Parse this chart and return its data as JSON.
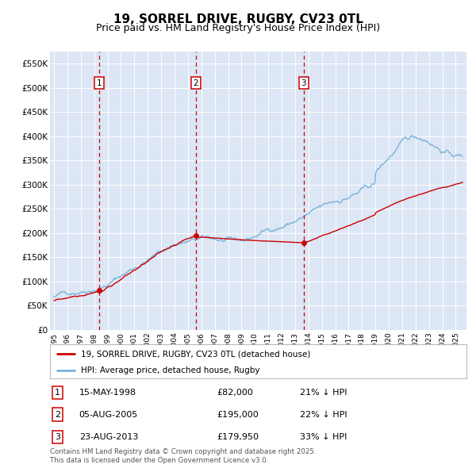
{
  "title": "19, SORREL DRIVE, RUGBY, CV23 0TL",
  "subtitle": "Price paid vs. HM Land Registry's House Price Index (HPI)",
  "ylim": [
    0,
    575000
  ],
  "yticks": [
    0,
    50000,
    100000,
    150000,
    200000,
    250000,
    300000,
    350000,
    400000,
    450000,
    500000,
    550000
  ],
  "ytick_labels": [
    "£0",
    "£50K",
    "£100K",
    "£150K",
    "£200K",
    "£250K",
    "£300K",
    "£350K",
    "£400K",
    "£450K",
    "£500K",
    "£550K"
  ],
  "xlim_start": 1994.7,
  "xlim_end": 2025.8,
  "plot_bg_color": "#dce6f5",
  "hpi_color": "#7ab3d9",
  "property_color": "#cc0000",
  "sales": [
    {
      "year": 1998.37,
      "price": 82000,
      "label": "1",
      "date_str": "15-MAY-1998",
      "price_str": "£82,000",
      "pct_str": "21% ↓ HPI"
    },
    {
      "year": 2005.59,
      "price": 195000,
      "label": "2",
      "date_str": "05-AUG-2005",
      "price_str": "£195,000",
      "pct_str": "22% ↓ HPI"
    },
    {
      "year": 2013.64,
      "price": 179950,
      "label": "3",
      "date_str": "23-AUG-2013",
      "price_str": "£179,950",
      "pct_str": "33% ↓ HPI"
    }
  ],
  "legend_label_property": "19, SORREL DRIVE, RUGBY, CV23 0TL (detached house)",
  "legend_label_hpi": "HPI: Average price, detached house, Rugby",
  "footer": "Contains HM Land Registry data © Crown copyright and database right 2025.\nThis data is licensed under the Open Government Licence v3.0.",
  "title_fontsize": 11,
  "subtitle_fontsize": 9,
  "axis_fontsize": 7.5
}
